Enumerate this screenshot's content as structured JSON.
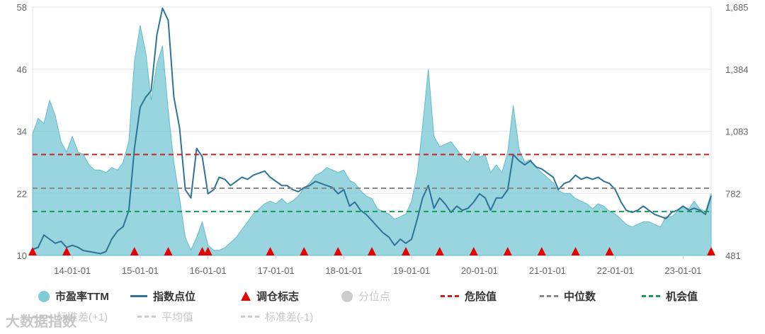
{
  "chart_data": {
    "type": "area",
    "xlim": [
      "2013-06-01",
      "2023-06-01"
    ],
    "x_ticks": [
      "14-01-01",
      "15-01-01",
      "16-01-01",
      "17-01-01",
      "18-01-01",
      "19-01-01",
      "20-01-01",
      "21-01-01",
      "22-01-01",
      "23-01-01"
    ],
    "y_left": {
      "ylim": [
        10,
        58
      ],
      "ticks": [
        "10",
        "22",
        "34",
        "46",
        "58"
      ]
    },
    "y_right": {
      "ylim": [
        481,
        1685
      ],
      "ticks": [
        "481",
        "782",
        "1,083",
        "1,384",
        "1,685"
      ]
    },
    "series": [
      {
        "name": "市盈率TTM",
        "type": "area",
        "axis": "left",
        "color": "#7ecbd6",
        "points": [
          [
            "2013-06-01",
            33.5
          ],
          [
            "2013-07-01",
            36.5
          ],
          [
            "2013-08-01",
            35.5
          ],
          [
            "2013-09-01",
            40.0
          ],
          [
            "2013-10-01",
            37.0
          ],
          [
            "2013-11-01",
            32.0
          ],
          [
            "2013-12-01",
            30.0
          ],
          [
            "2014-01-01",
            33.0
          ],
          [
            "2014-02-01",
            30.0
          ],
          [
            "2014-03-01",
            29.5
          ],
          [
            "2014-04-01",
            27.5
          ],
          [
            "2014-05-01",
            26.5
          ],
          [
            "2014-06-01",
            26.5
          ],
          [
            "2014-07-01",
            26.0
          ],
          [
            "2014-08-01",
            27.0
          ],
          [
            "2014-09-01",
            26.5
          ],
          [
            "2014-10-01",
            28.0
          ],
          [
            "2014-11-01",
            32.0
          ],
          [
            "2014-12-01",
            47.5
          ],
          [
            "2015-01-01",
            54.5
          ],
          [
            "2015-02-01",
            49.0
          ],
          [
            "2015-03-01",
            40.0
          ],
          [
            "2015-04-01",
            47.0
          ],
          [
            "2015-05-01",
            50.5
          ],
          [
            "2015-06-01",
            38.0
          ],
          [
            "2015-07-01",
            28.0
          ],
          [
            "2015-08-01",
            21.0
          ],
          [
            "2015-09-01",
            13.5
          ],
          [
            "2015-10-01",
            11.0
          ],
          [
            "2015-11-01",
            13.5
          ],
          [
            "2015-12-01",
            16.5
          ],
          [
            "2016-01-01",
            12.0
          ],
          [
            "2016-02-01",
            11.0
          ],
          [
            "2016-03-01",
            11.0
          ],
          [
            "2016-04-01",
            11.5
          ],
          [
            "2016-05-01",
            12.5
          ],
          [
            "2016-06-01",
            13.5
          ],
          [
            "2016-07-01",
            15.0
          ],
          [
            "2016-08-01",
            16.5
          ],
          [
            "2016-09-01",
            18.0
          ],
          [
            "2016-10-01",
            19.0
          ],
          [
            "2016-11-01",
            20.0
          ],
          [
            "2016-12-01",
            20.5
          ],
          [
            "2017-01-01",
            20.0
          ],
          [
            "2017-02-01",
            21.0
          ],
          [
            "2017-03-01",
            20.0
          ],
          [
            "2017-04-01",
            20.5
          ],
          [
            "2017-05-01",
            21.5
          ],
          [
            "2017-06-01",
            23.0
          ],
          [
            "2017-07-01",
            24.0
          ],
          [
            "2017-08-01",
            25.5
          ],
          [
            "2017-09-01",
            26.0
          ],
          [
            "2017-10-01",
            27.0
          ],
          [
            "2017-11-01",
            26.5
          ],
          [
            "2017-12-01",
            26.0
          ],
          [
            "2018-01-01",
            26.5
          ],
          [
            "2018-02-01",
            24.5
          ],
          [
            "2018-03-01",
            24.0
          ],
          [
            "2018-04-01",
            22.5
          ],
          [
            "2018-05-01",
            21.5
          ],
          [
            "2018-06-01",
            21.0
          ],
          [
            "2018-07-01",
            19.0
          ],
          [
            "2018-08-01",
            18.5
          ],
          [
            "2018-09-01",
            18.0
          ],
          [
            "2018-10-01",
            17.0
          ],
          [
            "2018-11-01",
            17.5
          ],
          [
            "2018-12-01",
            18.0
          ],
          [
            "2019-01-01",
            20.5
          ],
          [
            "2019-02-01",
            26.0
          ],
          [
            "2019-03-01",
            35.0
          ],
          [
            "2019-04-01",
            46.0
          ],
          [
            "2019-05-01",
            33.0
          ],
          [
            "2019-06-01",
            31.0
          ],
          [
            "2019-07-01",
            31.5
          ],
          [
            "2019-08-01",
            32.0
          ],
          [
            "2019-09-01",
            30.5
          ],
          [
            "2019-10-01",
            29.0
          ],
          [
            "2019-11-01",
            28.0
          ],
          [
            "2019-12-01",
            30.0
          ],
          [
            "2020-01-01",
            29.0
          ],
          [
            "2020-02-01",
            29.5
          ],
          [
            "2020-03-01",
            26.0
          ],
          [
            "2020-04-01",
            27.5
          ],
          [
            "2020-05-01",
            26.0
          ],
          [
            "2020-06-01",
            30.0
          ],
          [
            "2020-07-01",
            39.0
          ],
          [
            "2020-08-01",
            30.5
          ],
          [
            "2020-09-01",
            28.0
          ],
          [
            "2020-10-01",
            28.5
          ],
          [
            "2020-11-01",
            27.0
          ],
          [
            "2020-12-01",
            26.0
          ],
          [
            "2021-01-01",
            25.0
          ],
          [
            "2021-02-01",
            24.0
          ],
          [
            "2021-03-01",
            22.5
          ],
          [
            "2021-04-01",
            22.0
          ],
          [
            "2021-05-01",
            22.0
          ],
          [
            "2021-06-01",
            21.0
          ],
          [
            "2021-07-01",
            20.5
          ],
          [
            "2021-08-01",
            20.0
          ],
          [
            "2021-09-01",
            19.0
          ],
          [
            "2021-10-01",
            20.0
          ],
          [
            "2021-11-01",
            19.5
          ],
          [
            "2021-12-01",
            18.5
          ],
          [
            "2022-01-01",
            18.0
          ],
          [
            "2022-02-01",
            17.0
          ],
          [
            "2022-03-01",
            16.0
          ],
          [
            "2022-04-01",
            15.5
          ],
          [
            "2022-05-01",
            16.0
          ],
          [
            "2022-06-01",
            16.5
          ],
          [
            "2022-07-01",
            16.5
          ],
          [
            "2022-08-01",
            16.0
          ],
          [
            "2022-09-01",
            15.5
          ],
          [
            "2022-10-01",
            17.5
          ],
          [
            "2022-11-01",
            17.5
          ],
          [
            "2022-12-01",
            18.5
          ],
          [
            "2023-01-01",
            19.5
          ],
          [
            "2023-02-01",
            19.0
          ],
          [
            "2023-03-01",
            20.5
          ],
          [
            "2023-04-01",
            19.0
          ],
          [
            "2023-05-01",
            18.5
          ],
          [
            "2023-06-01",
            22.0
          ]
        ]
      },
      {
        "name": "指数点位",
        "type": "line",
        "axis": "right",
        "color": "#2f7399",
        "points": [
          [
            "2013-06-01",
            510
          ],
          [
            "2013-07-01",
            520
          ],
          [
            "2013-08-01",
            580
          ],
          [
            "2013-09-01",
            560
          ],
          [
            "2013-10-01",
            540
          ],
          [
            "2013-11-01",
            550
          ],
          [
            "2013-12-01",
            520
          ],
          [
            "2014-01-01",
            530
          ],
          [
            "2014-02-01",
            520
          ],
          [
            "2014-03-01",
            505
          ],
          [
            "2014-04-01",
            500
          ],
          [
            "2014-05-01",
            495
          ],
          [
            "2014-06-01",
            490
          ],
          [
            "2014-07-01",
            500
          ],
          [
            "2014-08-01",
            560
          ],
          [
            "2014-09-01",
            600
          ],
          [
            "2014-10-01",
            620
          ],
          [
            "2014-11-01",
            700
          ],
          [
            "2014-12-01",
            1000
          ],
          [
            "2015-01-01",
            1200
          ],
          [
            "2015-02-01",
            1250
          ],
          [
            "2015-03-01",
            1280
          ],
          [
            "2015-04-01",
            1550
          ],
          [
            "2015-05-01",
            1680
          ],
          [
            "2015-06-01",
            1620
          ],
          [
            "2015-07-01",
            1250
          ],
          [
            "2015-08-01",
            1100
          ],
          [
            "2015-09-01",
            800
          ],
          [
            "2015-10-01",
            760
          ],
          [
            "2015-11-01",
            1000
          ],
          [
            "2015-12-01",
            960
          ],
          [
            "2016-01-01",
            780
          ],
          [
            "2016-02-01",
            800
          ],
          [
            "2016-03-01",
            860
          ],
          [
            "2016-04-01",
            850
          ],
          [
            "2016-05-01",
            820
          ],
          [
            "2016-06-01",
            840
          ],
          [
            "2016-07-01",
            860
          ],
          [
            "2016-08-01",
            850
          ],
          [
            "2016-09-01",
            870
          ],
          [
            "2016-10-01",
            880
          ],
          [
            "2016-11-01",
            890
          ],
          [
            "2016-12-01",
            860
          ],
          [
            "2017-01-01",
            840
          ],
          [
            "2017-02-01",
            820
          ],
          [
            "2017-03-01",
            820
          ],
          [
            "2017-04-01",
            800
          ],
          [
            "2017-05-01",
            790
          ],
          [
            "2017-06-01",
            810
          ],
          [
            "2017-07-01",
            820
          ],
          [
            "2017-08-01",
            840
          ],
          [
            "2017-09-01",
            830
          ],
          [
            "2017-10-01",
            820
          ],
          [
            "2017-11-01",
            810
          ],
          [
            "2017-12-01",
            780
          ],
          [
            "2018-01-01",
            800
          ],
          [
            "2018-02-01",
            720
          ],
          [
            "2018-03-01",
            740
          ],
          [
            "2018-04-01",
            700
          ],
          [
            "2018-05-01",
            680
          ],
          [
            "2018-06-01",
            650
          ],
          [
            "2018-07-01",
            620
          ],
          [
            "2018-08-01",
            590
          ],
          [
            "2018-09-01",
            570
          ],
          [
            "2018-10-01",
            530
          ],
          [
            "2018-11-01",
            560
          ],
          [
            "2018-12-01",
            540
          ],
          [
            "2019-01-01",
            560
          ],
          [
            "2019-02-01",
            660
          ],
          [
            "2019-03-01",
            760
          ],
          [
            "2019-04-01",
            820
          ],
          [
            "2019-05-01",
            710
          ],
          [
            "2019-06-01",
            760
          ],
          [
            "2019-07-01",
            730
          ],
          [
            "2019-08-01",
            690
          ],
          [
            "2019-09-01",
            720
          ],
          [
            "2019-10-01",
            700
          ],
          [
            "2019-11-01",
            710
          ],
          [
            "2019-12-01",
            740
          ],
          [
            "2020-01-01",
            780
          ],
          [
            "2020-02-01",
            760
          ],
          [
            "2020-03-01",
            700
          ],
          [
            "2020-04-01",
            760
          ],
          [
            "2020-05-01",
            760
          ],
          [
            "2020-06-01",
            800
          ],
          [
            "2020-07-01",
            970
          ],
          [
            "2020-08-01",
            940
          ],
          [
            "2020-09-01",
            920
          ],
          [
            "2020-10-01",
            940
          ],
          [
            "2020-11-01",
            910
          ],
          [
            "2020-12-01",
            900
          ],
          [
            "2021-01-01",
            880
          ],
          [
            "2021-02-01",
            860
          ],
          [
            "2021-03-01",
            800
          ],
          [
            "2021-04-01",
            830
          ],
          [
            "2021-05-01",
            840
          ],
          [
            "2021-06-01",
            870
          ],
          [
            "2021-07-01",
            850
          ],
          [
            "2021-08-01",
            860
          ],
          [
            "2021-09-01",
            850
          ],
          [
            "2021-10-01",
            860
          ],
          [
            "2021-11-01",
            840
          ],
          [
            "2021-12-01",
            830
          ],
          [
            "2022-01-01",
            800
          ],
          [
            "2022-02-01",
            740
          ],
          [
            "2022-03-01",
            700
          ],
          [
            "2022-04-01",
            690
          ],
          [
            "2022-05-01",
            700
          ],
          [
            "2022-06-01",
            720
          ],
          [
            "2022-07-01",
            700
          ],
          [
            "2022-08-01",
            680
          ],
          [
            "2022-09-01",
            670
          ],
          [
            "2022-10-01",
            660
          ],
          [
            "2022-11-01",
            690
          ],
          [
            "2022-12-01",
            700
          ],
          [
            "2023-01-01",
            720
          ],
          [
            "2023-02-01",
            700
          ],
          [
            "2023-03-01",
            710
          ],
          [
            "2023-04-01",
            700
          ],
          [
            "2023-05-01",
            680
          ],
          [
            "2023-06-01",
            770
          ]
        ]
      }
    ],
    "reference_lines": [
      {
        "name": "危险值",
        "value": 29.5,
        "color": "#cc2222"
      },
      {
        "name": "中位数",
        "value": 23.0,
        "color": "#888888"
      },
      {
        "name": "机会值",
        "value": 18.5,
        "color": "#1a9a5a"
      }
    ],
    "markers": {
      "name": "调仓标志",
      "color": "#e60000",
      "dates": [
        "2013-06-01",
        "2013-12-01",
        "2014-12-01",
        "2015-06-01",
        "2015-12-01",
        "2016-01-01",
        "2016-12-01",
        "2017-06-01",
        "2017-12-01",
        "2018-06-01",
        "2018-12-01",
        "2019-06-01",
        "2019-12-01",
        "2020-06-01",
        "2020-12-01",
        "2021-06-01",
        "2021-12-01",
        "2023-06-01"
      ]
    },
    "legend": {
      "placement": "bottom",
      "items": [
        {
          "name": "市盈率TTM",
          "swatch": "circle",
          "color": "#7ecbd6",
          "active": true
        },
        {
          "name": "指数点位",
          "swatch": "line",
          "color": "#2f7399",
          "active": true
        },
        {
          "name": "调仓标志",
          "swatch": "triangle",
          "color": "#e60000",
          "active": true
        },
        {
          "name": "分位点",
          "swatch": "circle",
          "color": "#cccccc",
          "active": false
        },
        {
          "name": "危险值",
          "swatch": "dash",
          "color": "#cc2222",
          "active": true
        },
        {
          "name": "中位数",
          "swatch": "dash",
          "color": "#888888",
          "active": true
        },
        {
          "name": "机会值",
          "swatch": "dash",
          "color": "#1a9a5a",
          "active": true
        },
        {
          "name": "标准差(+1)",
          "swatch": "dash",
          "color": "#cccccc",
          "active": false
        },
        {
          "name": "平均值",
          "swatch": "dash",
          "color": "#cccccc",
          "active": false
        },
        {
          "name": "标准差(-1)",
          "swatch": "dash",
          "color": "#cccccc",
          "active": false
        }
      ]
    },
    "grid": true
  },
  "watermark": {
    "text": "大数据指数"
  }
}
